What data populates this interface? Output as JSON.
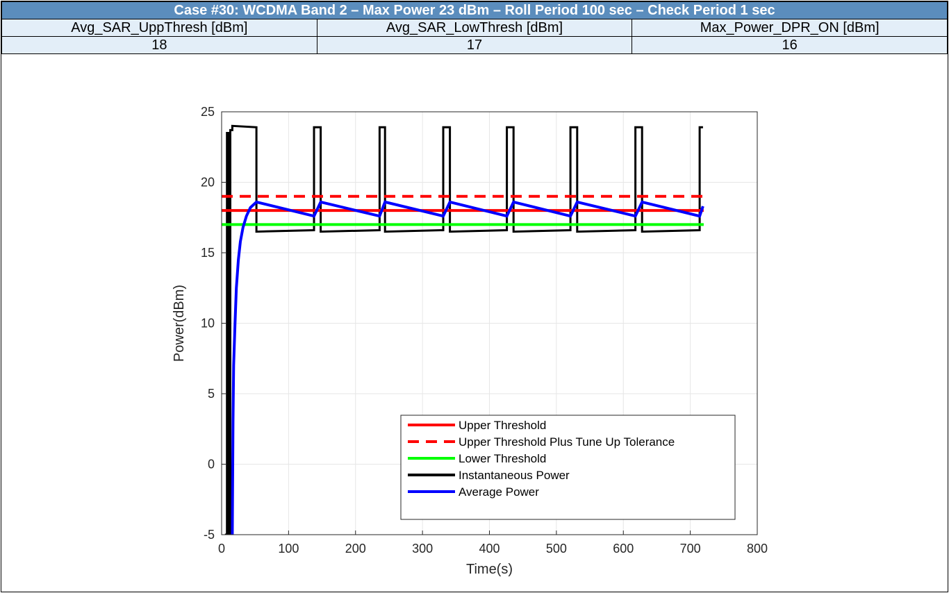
{
  "header": {
    "title": "Case #30: WCDMA Band 2 – Max Power 23 dBm – Roll Period 100 sec – Check Period 1 sec",
    "columns": [
      "Avg_SAR_UppThresh [dBm]",
      "Avg_SAR_LowThresh [dBm]",
      "Max_Power_DPR_ON [dBm]"
    ],
    "values": [
      "18",
      "17",
      "16"
    ]
  },
  "chart_data": {
    "type": "line",
    "title": "",
    "xlabel": "Time(s)",
    "ylabel": "Power(dBm)",
    "xlim": [
      0,
      800
    ],
    "ylim": [
      -5,
      25
    ],
    "xticks": [
      "0",
      "100",
      "200",
      "300",
      "400",
      "500",
      "600",
      "700",
      "800"
    ],
    "yticks": [
      "-5",
      "0",
      "5",
      "10",
      "15",
      "20",
      "25"
    ],
    "grid": true,
    "legend_position": "bottom-right",
    "series": [
      {
        "name": "Upper Threshold",
        "color": "#ff0000",
        "style": "solid",
        "x": [
          0,
          720
        ],
        "y": [
          18,
          18
        ]
      },
      {
        "name": "Upper Threshold Plus Tune Up Tolerance",
        "color": "#ff0000",
        "style": "dashed",
        "x": [
          0,
          720
        ],
        "y": [
          19,
          19
        ]
      },
      {
        "name": "Lower Threshold",
        "color": "#00ff00",
        "style": "solid",
        "x": [
          0,
          720
        ],
        "y": [
          17,
          17
        ]
      },
      {
        "name": "Instantaneous Power",
        "color": "#000000",
        "style": "solid",
        "x": [
          5,
          8,
          8,
          11,
          11,
          13,
          13,
          16,
          16,
          52,
          52,
          138,
          138,
          148,
          148,
          236,
          236,
          244,
          244,
          331,
          331,
          341,
          341,
          426,
          426,
          436,
          436,
          521,
          521,
          531,
          531,
          618,
          618,
          628,
          628,
          714,
          714,
          719
        ],
        "y": [
          -5,
          -5,
          23.5,
          23.5,
          -5,
          -5,
          23.7,
          23.7,
          24.0,
          23.9,
          16.5,
          16.6,
          23.9,
          23.9,
          16.5,
          16.6,
          23.9,
          23.9,
          16.5,
          16.6,
          23.9,
          23.9,
          16.5,
          16.6,
          23.9,
          23.9,
          16.5,
          16.6,
          23.9,
          23.9,
          16.5,
          16.6,
          23.9,
          23.9,
          16.5,
          16.6,
          23.9,
          23.9
        ]
      },
      {
        "name": "Average Power",
        "color": "#0000ff",
        "style": "solid",
        "x": [
          16,
          17,
          18,
          20,
          22,
          25,
          28,
          32,
          37,
          43,
          52,
          138,
          148,
          236,
          244,
          331,
          341,
          426,
          436,
          521,
          531,
          618,
          628,
          714,
          719
        ],
        "y": [
          -5,
          3,
          7,
          10,
          12.5,
          14.5,
          15.8,
          16.8,
          17.6,
          18.2,
          18.6,
          17.6,
          18.6,
          17.6,
          18.6,
          17.6,
          18.6,
          17.6,
          18.6,
          17.6,
          18.6,
          17.6,
          18.6,
          17.6,
          18.3
        ]
      }
    ]
  }
}
